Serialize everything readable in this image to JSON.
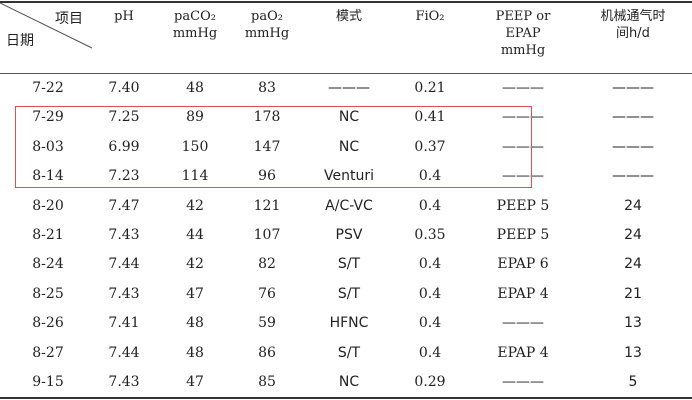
{
  "header": {
    "corner_top": "项目",
    "corner_bottom": "日期",
    "columns": [
      {
        "lines": [
          "pH"
        ]
      },
      {
        "lines": [
          "paCO₂",
          "mmHg"
        ]
      },
      {
        "lines": [
          "paO₂",
          "mmHg"
        ]
      },
      {
        "lines": [
          "模式"
        ]
      },
      {
        "lines": [
          "FiO₂"
        ]
      },
      {
        "lines": [
          "PEEP or",
          "EPAP",
          "mmHg"
        ]
      },
      {
        "lines": [
          "机械通气时",
          "间h/d"
        ]
      }
    ]
  },
  "rows": [
    [
      "7-22",
      "7.40",
      "48",
      "83",
      "———",
      "0.21",
      "———",
      "———"
    ],
    [
      "7-29",
      "7.25",
      "89",
      "178",
      "NC",
      "0.41",
      "———",
      "———"
    ],
    [
      "8-03",
      "6.99",
      "150",
      "147",
      "NC",
      "0.37",
      "———",
      "———"
    ],
    [
      "8-14",
      "7.23",
      "114",
      "96",
      "Venturi",
      "0.4",
      "———",
      "———"
    ],
    [
      "8-20",
      "7.47",
      "42",
      "121",
      "A/C-VC",
      "0.4",
      "PEEP 5",
      "24"
    ],
    [
      "8-21",
      "7.43",
      "44",
      "107",
      "PSV",
      "0.35",
      "PEEP 5",
      "24"
    ],
    [
      "8-24",
      "7.44",
      "42",
      "82",
      "S/T",
      "0.4",
      "EPAP 6",
      "24"
    ],
    [
      "8-25",
      "7.43",
      "47",
      "76",
      "S/T",
      "0.4",
      "EPAP 4",
      "21"
    ],
    [
      "8-26",
      "7.41",
      "48",
      "59",
      "HFNC",
      "0.4",
      "———",
      "13"
    ],
    [
      "8-27",
      "7.44",
      "48",
      "86",
      "S/T",
      "0.4",
      "EPAP 4",
      "13"
    ],
    [
      "9-15",
      "7.43",
      "47",
      "85",
      "NC",
      "0.29",
      "———",
      "5"
    ]
  ],
  "highlight_color": "#e05050"
}
